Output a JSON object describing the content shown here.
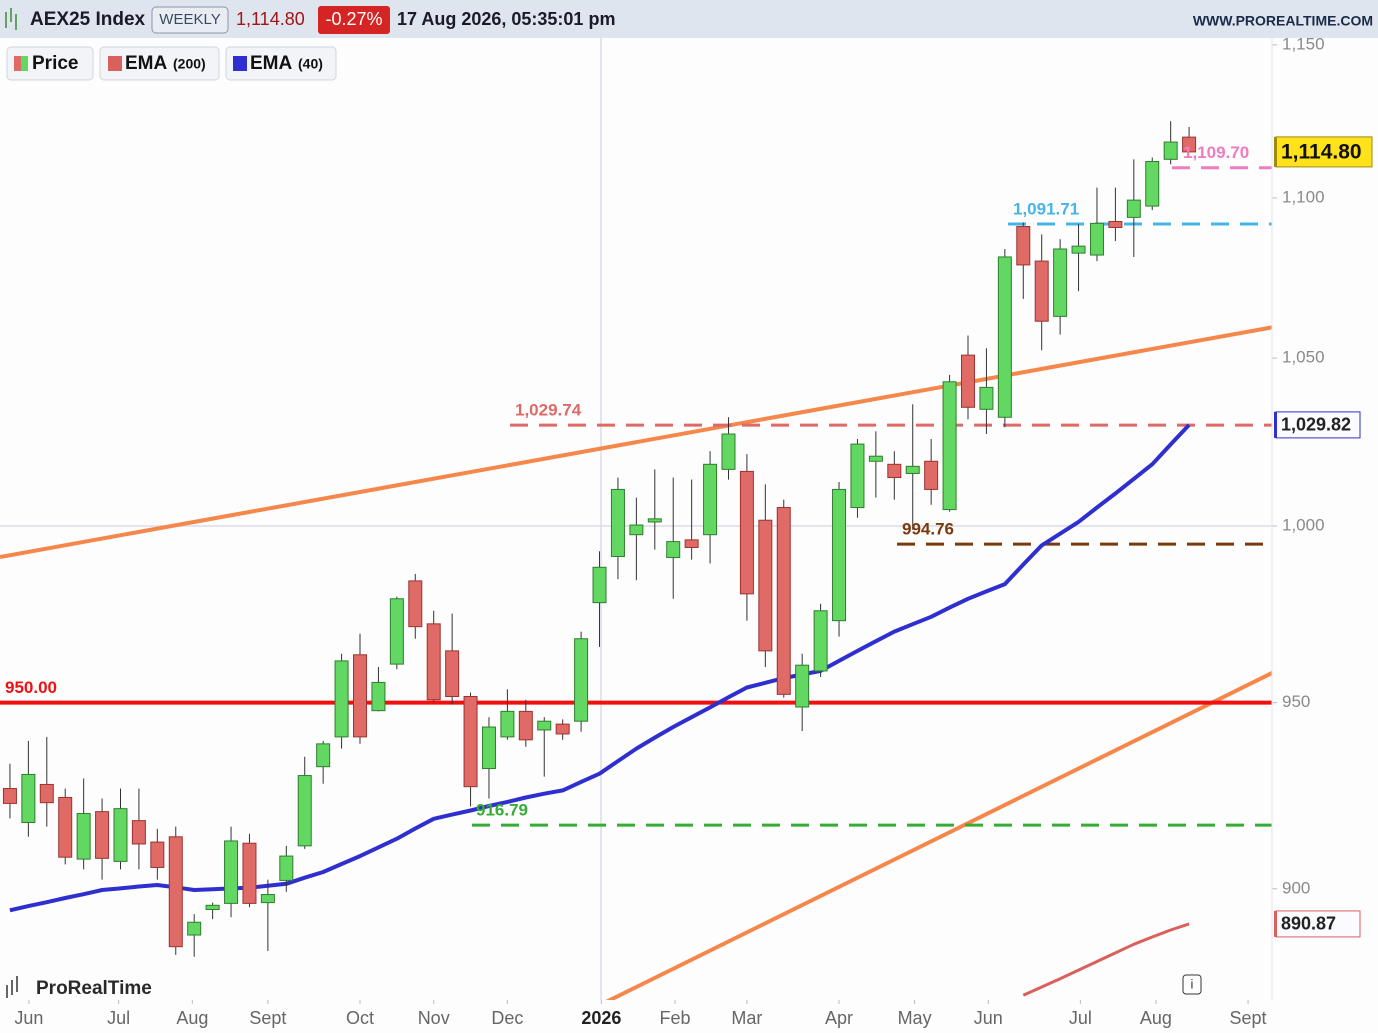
{
  "chart_data": {
    "type": "candlestick",
    "title": "AEX25 Index",
    "timeframe": "WEEKLY",
    "price": {
      "value": 1114.8,
      "label": "1,114.80"
    },
    "change": {
      "value": -0.27,
      "label": "-0.27%"
    },
    "datetime": "17 Aug 2026, 05:35:01 pm",
    "source": "WWW.PROREALTIME.COM",
    "brand": "ProRealTime",
    "info": "i",
    "log_scale": true,
    "ylim": [
      871.4,
      1152.3
    ],
    "yticks": [
      {
        "value": 1150,
        "label": "1,150"
      },
      {
        "value": 1100,
        "label": "1,100"
      },
      {
        "value": 1050,
        "label": "1,050"
      },
      {
        "value": 1000,
        "label": "1,000"
      },
      950,
      900
    ],
    "xlim": [
      -0.54,
      68.5
    ],
    "xticks": [
      {
        "value": 1.03,
        "label": "Jun"
      },
      {
        "value": 5.9,
        "label": "Jul"
      },
      {
        "value": 9.9,
        "label": "Aug"
      },
      {
        "value": 14.0,
        "label": "Sept"
      },
      {
        "value": 19.0,
        "label": "Oct"
      },
      {
        "value": 23.0,
        "label": "Nov"
      },
      {
        "value": 27.0,
        "label": "Dec"
      },
      {
        "value": 32.1,
        "label": "2026"
      },
      {
        "value": 36.1,
        "label": "Feb"
      },
      {
        "value": 40.0,
        "label": "Mar"
      },
      {
        "value": 45.0,
        "label": "Apr"
      },
      {
        "value": 49.1,
        "label": "May"
      },
      {
        "value": 53.1,
        "label": "Jun"
      },
      {
        "value": 58.1,
        "label": "Jul"
      },
      {
        "value": 62.2,
        "label": "Aug"
      },
      {
        "value": 67.2,
        "label": "Sept"
      }
    ],
    "price_legend": {
      "name": "Price"
    },
    "up_color": "#62d862",
    "down_color": "#e06a66",
    "x": [
      0,
      1,
      2,
      3,
      4,
      5,
      6,
      7,
      8,
      9,
      10,
      11,
      12,
      13,
      14,
      15,
      16,
      17,
      18,
      19,
      20,
      21,
      22,
      23,
      24,
      25,
      26,
      27,
      28,
      29,
      30,
      31,
      32,
      33,
      34,
      35,
      36,
      37,
      38,
      39,
      40,
      41,
      42,
      43,
      44,
      45,
      46,
      47,
      48,
      49,
      50,
      51,
      52,
      53,
      54,
      55,
      56,
      57,
      58,
      59,
      60,
      61,
      62,
      63,
      64
    ],
    "open": [
      926.6,
      917.5,
      927.7,
      924.2,
      907.8,
      920.4,
      907.2,
      918.0,
      912.3,
      913.7,
      888.0,
      894.6,
      896.2,
      912.0,
      896.4,
      902.2,
      911.3,
      932.5,
      940.6,
      963.3,
      947.8,
      960.7,
      984.2,
      972.0,
      964.4,
      951.7,
      932.0,
      940.6,
      947.6,
      942.5,
      944.1,
      944.9,
      978.0,
      991.2,
      997.5,
      1001.2,
      990.9,
      996.0,
      997.5,
      1016.6,
      1016.0,
      1001.7,
      1005.4,
      948.8,
      958.8,
      972.9,
      1005.4,
      1019.0,
      1018.1,
      1015.4,
      1019.0,
      1004.8,
      1050.9,
      1034.5,
      1032.1,
      1090.9,
      1080.0,
      1062.8,
      1082.5,
      1081.9,
      1092.5,
      1093.8,
      1097.4,
      1112.4,
      1119.6
    ],
    "high": [
      933.3,
      939.5,
      940.6,
      926.6,
      929.3,
      923.9,
      926.6,
      926.6,
      915.8,
      916.4,
      893.4,
      896.4,
      916.4,
      914.5,
      902.4,
      911.3,
      935.2,
      939.5,
      963.6,
      969.2,
      959.9,
      979.7,
      986.2,
      975.7,
      974.9,
      952.8,
      946.0,
      953.7,
      950.8,
      946.0,
      945.4,
      969.8,
      992.7,
      1014.2,
      1008.3,
      1016.6,
      1014.2,
      1013.6,
      1022.0,
      1032.1,
      1021.1,
      1012.2,
      1007.7,
      963.6,
      977.7,
      1012.9,
      1025.6,
      1027.9,
      1022.0,
      1036.0,
      1025.6,
      1044.9,
      1056.9,
      1053.0,
      1083.8,
      1092.2,
      1088.4,
      1086.9,
      1091.6,
      1103.3,
      1103.3,
      1112.4,
      1113.0,
      1124.8,
      1122.9
    ],
    "low": [
      918.6,
      913.7,
      916.4,
      906.4,
      905.1,
      902.4,
      905.1,
      905.1,
      902.4,
      882.9,
      882.4,
      892.1,
      892.6,
      895.2,
      883.9,
      899.2,
      910.5,
      927.9,
      937.4,
      938.7,
      947.6,
      959.3,
      967.8,
      950.3,
      949.5,
      921.8,
      923.9,
      939.8,
      937.9,
      929.8,
      939.8,
      942.0,
      965.5,
      984.7,
      984.4,
      993.2,
      979.1,
      990.3,
      989.2,
      1013.6,
      972.9,
      959.9,
      951.4,
      942.2,
      957.1,
      968.4,
      1002.4,
      1008.3,
      1007.7,
      998.9,
      1006.2,
      1004.2,
      1031.5,
      1027.1,
      1029.1,
      1068.2,
      1052.4,
      1057.2,
      1070.6,
      1080.0,
      1086.3,
      1081.3,
      1096.1,
      1110.8,
      1114.8
    ],
    "close": [
      922.6,
      930.4,
      922.8,
      908.3,
      919.9,
      908.0,
      921.2,
      911.8,
      905.6,
      885.0,
      891.3,
      895.7,
      912.6,
      896.2,
      898.5,
      908.6,
      930.1,
      938.7,
      961.6,
      940.6,
      955.6,
      979.1,
      971.2,
      950.8,
      951.7,
      927.1,
      943.3,
      947.6,
      939.8,
      944.9,
      941.4,
      967.8,
      988.1,
      1010.7,
      1000.3,
      1002.1,
      995.5,
      993.8,
      1018.1,
      1027.1,
      980.5,
      964.4,
      952.3,
      960.4,
      975.7,
      1010.7,
      1024.1,
      1020.5,
      1014.2,
      1017.5,
      1010.7,
      1042.8,
      1035.1,
      1041.1,
      1081.3,
      1078.8,
      1061.3,
      1083.8,
      1084.7,
      1091.9,
      1090.6,
      1099.3,
      1111.7,
      1118.0,
      1114.8
    ],
    "series": [
      {
        "name": "EMA",
        "period": "(200)",
        "color": "#d9605c",
        "last_label": "890.87",
        "values": [
          null,
          null,
          null,
          null,
          null,
          null,
          null,
          null,
          null,
          null,
          null,
          null,
          null,
          null,
          null,
          null,
          null,
          null,
          null,
          null,
          null,
          null,
          null,
          null,
          null,
          null,
          null,
          null,
          null,
          null,
          null,
          null,
          null,
          null,
          null,
          null,
          null,
          null,
          null,
          null,
          null,
          null,
          null,
          null,
          null,
          null,
          null,
          null,
          null,
          null,
          null,
          null,
          null,
          null,
          null,
          872.6,
          874.7,
          876.8,
          879.0,
          881.2,
          883.4,
          885.6,
          887.5,
          889.3,
          890.87
        ]
      },
      {
        "name": "EMA",
        "period": "(40)",
        "color": "#2f2fd0",
        "last_label": "1,029.82",
        "values": [
          894.4,
          895.5,
          896.5,
          897.6,
          898.6,
          899.7,
          900.1,
          900.6,
          901.0,
          900.4,
          899.7,
          899.9,
          900.1,
          900.3,
          900.8,
          901.3,
          902.9,
          904.4,
          906.5,
          908.6,
          910.9,
          913.2,
          915.9,
          918.5,
          919.6,
          920.7,
          921.9,
          923.0,
          924.2,
          925.2,
          926.1,
          928.4,
          930.6,
          934.0,
          937.4,
          940.4,
          943.3,
          946.0,
          948.7,
          951.5,
          954.2,
          955.5,
          956.8,
          957.8,
          958.8,
          961.6,
          964.4,
          967.1,
          969.8,
          971.9,
          974.0,
          976.6,
          979.1,
          981.2,
          983.3,
          988.9,
          994.4,
          997.8,
          1001.2,
          1005.4,
          1009.5,
          1013.8,
          1018.1,
          1024.0,
          1029.82
        ]
      }
    ],
    "levels": [
      {
        "value": 1109.7,
        "label": "1,109.70",
        "color": "#f07cc0",
        "style": "dashed"
      },
      {
        "value": 1091.71,
        "label": "1,091.71",
        "color": "#45b4e6",
        "style": "dashed"
      },
      {
        "value": 1029.74,
        "label": "1,029.74",
        "color": "#de6a66",
        "style": "dashed"
      },
      {
        "value": 994.76,
        "label": "994.76",
        "color": "#7a3a0c",
        "style": "dashed"
      },
      {
        "value": 950.0,
        "label": "950.00",
        "color": "#f01010",
        "style": "solid"
      },
      {
        "value": 916.79,
        "label": "916.79",
        "color": "#35ac35",
        "style": "dashed"
      }
    ]
  }
}
